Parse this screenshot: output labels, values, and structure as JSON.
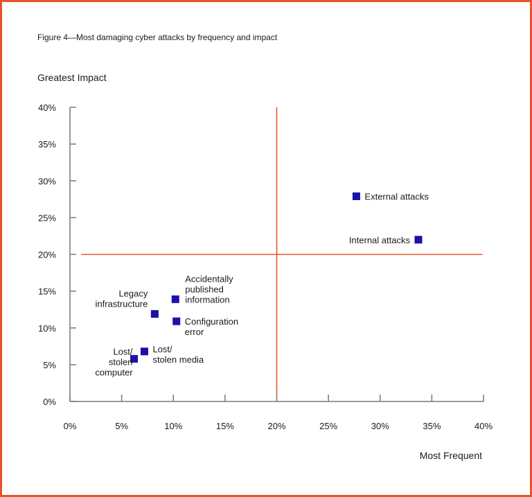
{
  "chart_data": {
    "type": "scatter",
    "title": "Figure 4—Most damaging cyber attacks by frequency and impact",
    "ylabel": "Greatest Impact",
    "xlabel": "Most Frequent",
    "xlim": [
      0,
      40
    ],
    "ylim": [
      0,
      40
    ],
    "x_ticks": [
      "0%",
      "5%",
      "10%",
      "15%",
      "20%",
      "25%",
      "30%",
      "35%",
      "40%"
    ],
    "y_ticks": [
      "0%",
      "5%",
      "10%",
      "15%",
      "20%",
      "25%",
      "30%",
      "35%",
      "40%"
    ],
    "quadrant_lines": {
      "x": 20,
      "y": 20
    },
    "colors": {
      "marker": "#1a12a8",
      "quadrant": "#e8542a",
      "axis": "#6b7a80",
      "border": "#e8542a"
    },
    "points": [
      {
        "label": "External attacks",
        "lines": [
          "External attacks"
        ],
        "x": 27.7,
        "y": 27.9,
        "label_side": "right"
      },
      {
        "label": "Internal attacks",
        "lines": [
          "Internal attacks"
        ],
        "x": 33.7,
        "y": 22.0,
        "label_side": "left"
      },
      {
        "label": "Accidentally published information",
        "lines": [
          "Accidentally",
          "published",
          "information"
        ],
        "x": 10.2,
        "y": 13.9,
        "label_side": "right-up"
      },
      {
        "label": "Legacy infrastructure",
        "lines": [
          "Legacy",
          "infrastructure"
        ],
        "x": 8.2,
        "y": 11.9,
        "label_side": "left-up"
      },
      {
        "label": "Configuration error",
        "lines": [
          "Configuration",
          "error"
        ],
        "x": 10.3,
        "y": 10.9,
        "label_side": "right"
      },
      {
        "label": "Lost/ stolen media",
        "lines": [
          "Lost/",
          "stolen media"
        ],
        "x": 7.2,
        "y": 6.8,
        "label_side": "right"
      },
      {
        "label": "Lost/ stolen computer",
        "lines": [
          "Lost/",
          "stolen",
          "computer"
        ],
        "x": 6.2,
        "y": 5.8,
        "label_side": "left"
      }
    ]
  }
}
